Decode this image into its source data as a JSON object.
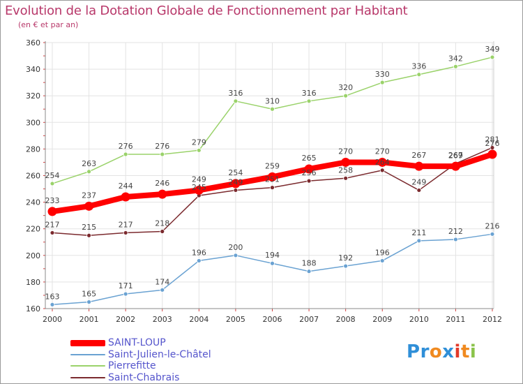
{
  "title": "Evolution de la Dotation Globale de Fonctionnement par Habitant",
  "subtitle": "(en € et par an)",
  "logo": {
    "letters": [
      "P",
      "r",
      "o",
      "x",
      "i",
      "t",
      "i"
    ],
    "colors": [
      "#2f8fd8",
      "#2f8fd8",
      "#f08a20",
      "#2f8fd8",
      "#e23a2a",
      "#f08a20",
      "#8bc34a"
    ]
  },
  "chart_data": {
    "type": "line",
    "categories": [
      "2000",
      "2001",
      "2002",
      "2003",
      "2004",
      "2005",
      "2006",
      "2007",
      "2008",
      "2009",
      "2010",
      "2011",
      "2012"
    ],
    "ylim": [
      160,
      360
    ],
    "yticks": [
      160,
      180,
      200,
      220,
      240,
      260,
      280,
      300,
      320,
      340,
      360
    ],
    "grid": true,
    "legend_position": "bottom-left",
    "series": [
      {
        "name": "Saint-Chabrais",
        "color": "#7b2a2e",
        "values": [
          217,
          215,
          217,
          218,
          245,
          249,
          251,
          256,
          258,
          264,
          249,
          269,
          281
        ]
      },
      {
        "name": "Pierrefitte",
        "color": "#9ad26a",
        "values": [
          254,
          263,
          276,
          276,
          279,
          316,
          310,
          316,
          320,
          330,
          336,
          342,
          349
        ]
      },
      {
        "name": "Saint-Julien-le-Châtel",
        "color": "#6aa2d2",
        "values": [
          163,
          165,
          171,
          174,
          196,
          200,
          194,
          188,
          192,
          196,
          211,
          212,
          216
        ]
      },
      {
        "name": "SAINT-LOUP",
        "color": "#ff0000",
        "values": [
          233,
          237,
          244,
          246,
          249,
          254,
          259,
          265,
          270,
          270,
          267,
          267,
          276
        ]
      }
    ]
  },
  "legend": [
    {
      "name": "SAINT-LOUP",
      "color": "#ff0000",
      "text_color": "#5555cc"
    },
    {
      "name": "Saint-Julien-le-Châtel",
      "color": "#6aa2d2",
      "text_color": "#5555cc"
    },
    {
      "name": "Pierrefitte",
      "color": "#9ad26a",
      "text_color": "#5555cc"
    },
    {
      "name": "Saint-Chabrais",
      "color": "#7b2a2e",
      "text_color": "#5555cc"
    }
  ]
}
